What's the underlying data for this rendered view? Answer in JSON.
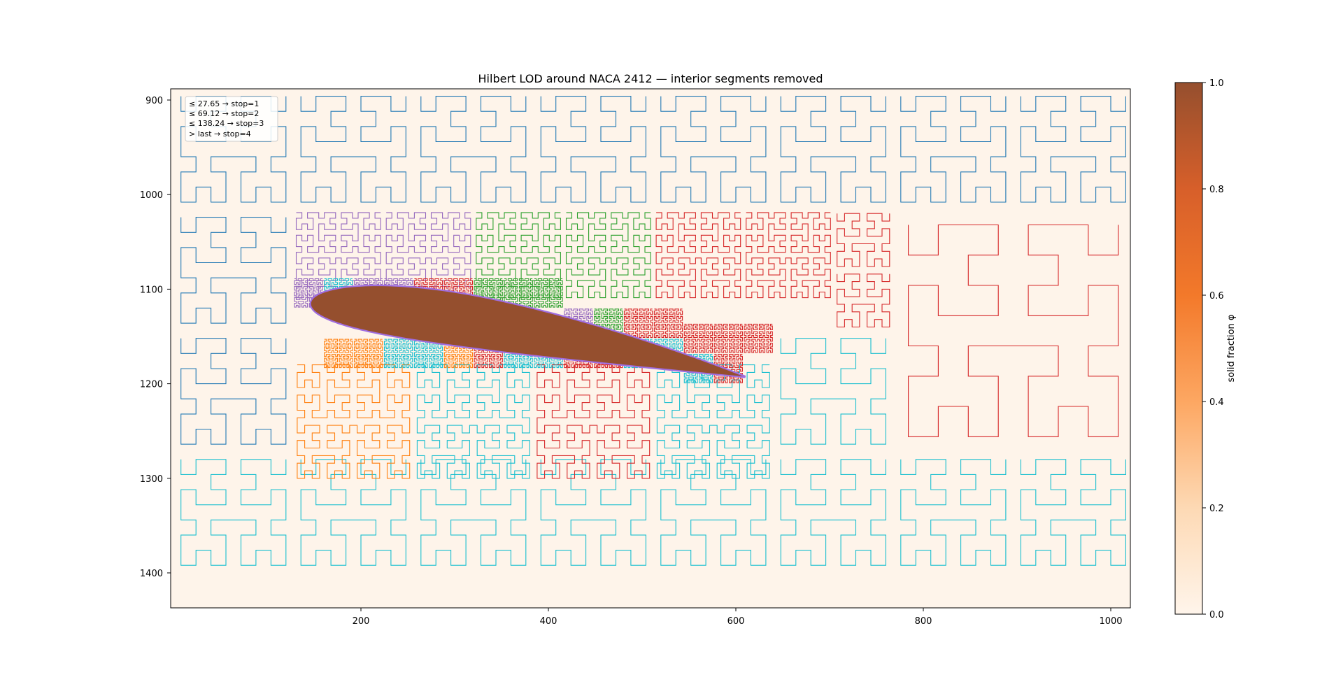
{
  "chart_data": {
    "type": "line",
    "title": "Hilbert LOD around NACA 2412 — interior segments removed",
    "xlabel": "",
    "ylabel": "",
    "xlim": [
      0,
      1024
    ],
    "ylim": [
      1440,
      888
    ],
    "x_ticks": [
      200,
      400,
      600,
      800,
      1000
    ],
    "y_ticks": [
      900,
      1000,
      1100,
      1200,
      1300,
      1400
    ],
    "y_inverted": true,
    "grid": false,
    "background_color": "#fef4ea",
    "legend": {
      "location": "upper-left",
      "entries": [
        "≤ 27.65 → stop=1",
        "≤ 69.12 → stop=2",
        "≤ 138.24 → stop=3",
        "> last → stop=4"
      ]
    },
    "series": [
      {
        "color": "#1f77b4",
        "values": [
          {
            "x": 64,
            "y": 960
          },
          {
            "x": 64,
            "y": 1104
          },
          {
            "x": 256,
            "y": 960
          }
        ]
      },
      {
        "color": "#ff7f0e",
        "values": [
          {
            "x": 192,
            "y": 1232
          }
        ]
      },
      {
        "color": "#2ca02c",
        "values": [
          {
            "x": 384,
            "y": 1072
          },
          {
            "x": 448,
            "y": 1104
          }
        ]
      },
      {
        "color": "#d62728",
        "values": [
          {
            "x": 576,
            "y": 1104
          },
          {
            "x": 896,
            "y": 1200
          },
          {
            "x": 448,
            "y": 1232
          }
        ]
      },
      {
        "color": "#9467bd",
        "values": [
          {
            "x": 192,
            "y": 1072
          },
          {
            "x": 224,
            "y": 1104
          }
        ]
      },
      {
        "color": "#17becf",
        "values": [
          {
            "x": 512,
            "y": 1360
          },
          {
            "x": 672,
            "y": 1232
          },
          {
            "x": 288,
            "y": 1232
          }
        ]
      }
    ],
    "solid": {
      "name": "NACA 2412",
      "fill": "#954f2e",
      "edge": "#a06ee0",
      "leading_edge": [
        146,
        1115
      ],
      "chord_length": 470,
      "angle_of_attack_deg": 9.5,
      "thickness": 0.12,
      "camber": 0.02,
      "camber_pos": 0.4
    },
    "colorbar": {
      "label": "solid fraction φ",
      "range": [
        0.0,
        1.0
      ],
      "ticks": [
        "0.0",
        "0.2",
        "0.4",
        "0.6",
        "0.8",
        "1.0"
      ],
      "cmap": "Oranges"
    }
  }
}
